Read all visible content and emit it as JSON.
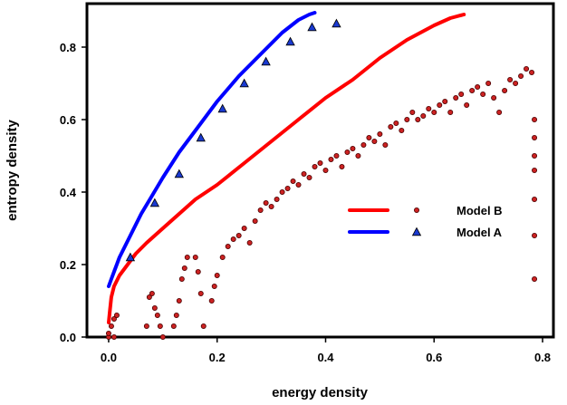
{
  "chart_data": {
    "type": "scatter",
    "xlabel": "energy density",
    "ylabel": "entropy density",
    "xlim": [
      -0.04,
      0.82
    ],
    "ylim": [
      0.0,
      0.92
    ],
    "xticks": [
      "0.0",
      "0.2",
      "0.4",
      "0.6",
      "0.8"
    ],
    "xtick_values": [
      0.0,
      0.2,
      0.4,
      0.6,
      0.8
    ],
    "yticks": [
      "0.0",
      "0.2",
      "0.4",
      "0.6",
      "0.8"
    ],
    "ytick_values": [
      0.0,
      0.2,
      0.4,
      0.6,
      0.8
    ],
    "grid": false,
    "legend_position": "center-right",
    "colors": {
      "model_b_line": "#ff0000",
      "model_a_line": "#0000ff",
      "model_b_marker_fill": "#cc2222",
      "model_b_marker_edge": "#4a0000",
      "model_a_marker_fill": "#1a3ad0",
      "model_a_marker_edge": "#000000"
    },
    "legend": [
      {
        "name": "Model B",
        "line_color": "#ff0000",
        "marker": "circle"
      },
      {
        "name": "Model A",
        "line_color": "#0000ff",
        "marker": "triangle"
      }
    ],
    "series": [
      {
        "name": "Model B",
        "kind": "curve",
        "x": [
          0.0,
          0.002,
          0.005,
          0.01,
          0.02,
          0.03,
          0.05,
          0.07,
          0.1,
          0.13,
          0.16,
          0.2,
          0.25,
          0.3,
          0.35,
          0.4,
          0.45,
          0.5,
          0.55,
          0.6,
          0.63,
          0.655
        ],
        "y": [
          0.04,
          0.07,
          0.11,
          0.14,
          0.17,
          0.19,
          0.23,
          0.26,
          0.3,
          0.34,
          0.38,
          0.42,
          0.48,
          0.54,
          0.6,
          0.66,
          0.71,
          0.77,
          0.82,
          0.86,
          0.88,
          0.89
        ]
      },
      {
        "name": "Model A",
        "kind": "curve",
        "x": [
          0.0,
          0.005,
          0.01,
          0.02,
          0.04,
          0.06,
          0.08,
          0.1,
          0.13,
          0.16,
          0.2,
          0.24,
          0.28,
          0.32,
          0.35,
          0.37,
          0.38
        ],
        "y": [
          0.14,
          0.16,
          0.18,
          0.22,
          0.28,
          0.34,
          0.39,
          0.44,
          0.51,
          0.57,
          0.65,
          0.72,
          0.78,
          0.84,
          0.875,
          0.89,
          0.895
        ]
      },
      {
        "name": "Model A",
        "kind": "markers",
        "x": [
          0.04,
          0.085,
          0.13,
          0.17,
          0.21,
          0.25,
          0.29,
          0.335,
          0.375,
          0.42
        ],
        "y": [
          0.22,
          0.37,
          0.45,
          0.55,
          0.63,
          0.7,
          0.76,
          0.815,
          0.855,
          0.865
        ]
      },
      {
        "name": "Model B",
        "kind": "markers",
        "x": [
          0.0,
          0.005,
          0.01,
          0.015,
          0.0,
          0.01,
          0.07,
          0.075,
          0.08,
          0.085,
          0.09,
          0.095,
          0.1,
          0.12,
          0.125,
          0.13,
          0.135,
          0.14,
          0.145,
          0.16,
          0.165,
          0.17,
          0.175,
          0.19,
          0.195,
          0.2,
          0.21,
          0.22,
          0.23,
          0.24,
          0.25,
          0.26,
          0.27,
          0.28,
          0.29,
          0.3,
          0.31,
          0.32,
          0.33,
          0.34,
          0.35,
          0.36,
          0.37,
          0.38,
          0.39,
          0.4,
          0.41,
          0.42,
          0.43,
          0.44,
          0.45,
          0.46,
          0.47,
          0.48,
          0.49,
          0.5,
          0.51,
          0.52,
          0.53,
          0.54,
          0.55,
          0.56,
          0.57,
          0.58,
          0.59,
          0.6,
          0.61,
          0.62,
          0.63,
          0.64,
          0.65,
          0.66,
          0.67,
          0.68,
          0.69,
          0.7,
          0.71,
          0.72,
          0.73,
          0.74,
          0.75,
          0.76,
          0.77,
          0.78,
          0.785,
          0.785,
          0.785,
          0.785,
          0.785,
          0.785,
          0.785
        ],
        "y": [
          0.0,
          0.03,
          0.05,
          0.06,
          0.01,
          0.0,
          0.03,
          0.11,
          0.12,
          0.08,
          0.06,
          0.03,
          0.0,
          0.03,
          0.06,
          0.1,
          0.16,
          0.19,
          0.22,
          0.22,
          0.18,
          0.12,
          0.03,
          0.1,
          0.14,
          0.17,
          0.22,
          0.25,
          0.27,
          0.28,
          0.3,
          0.26,
          0.32,
          0.35,
          0.37,
          0.36,
          0.38,
          0.4,
          0.41,
          0.43,
          0.42,
          0.45,
          0.44,
          0.47,
          0.48,
          0.46,
          0.49,
          0.5,
          0.47,
          0.51,
          0.52,
          0.5,
          0.53,
          0.55,
          0.54,
          0.56,
          0.53,
          0.58,
          0.59,
          0.57,
          0.6,
          0.62,
          0.6,
          0.61,
          0.63,
          0.62,
          0.64,
          0.65,
          0.62,
          0.66,
          0.67,
          0.64,
          0.68,
          0.69,
          0.67,
          0.7,
          0.66,
          0.62,
          0.68,
          0.71,
          0.7,
          0.72,
          0.74,
          0.73,
          0.6,
          0.55,
          0.5,
          0.46,
          0.38,
          0.28,
          0.16
        ]
      }
    ]
  }
}
